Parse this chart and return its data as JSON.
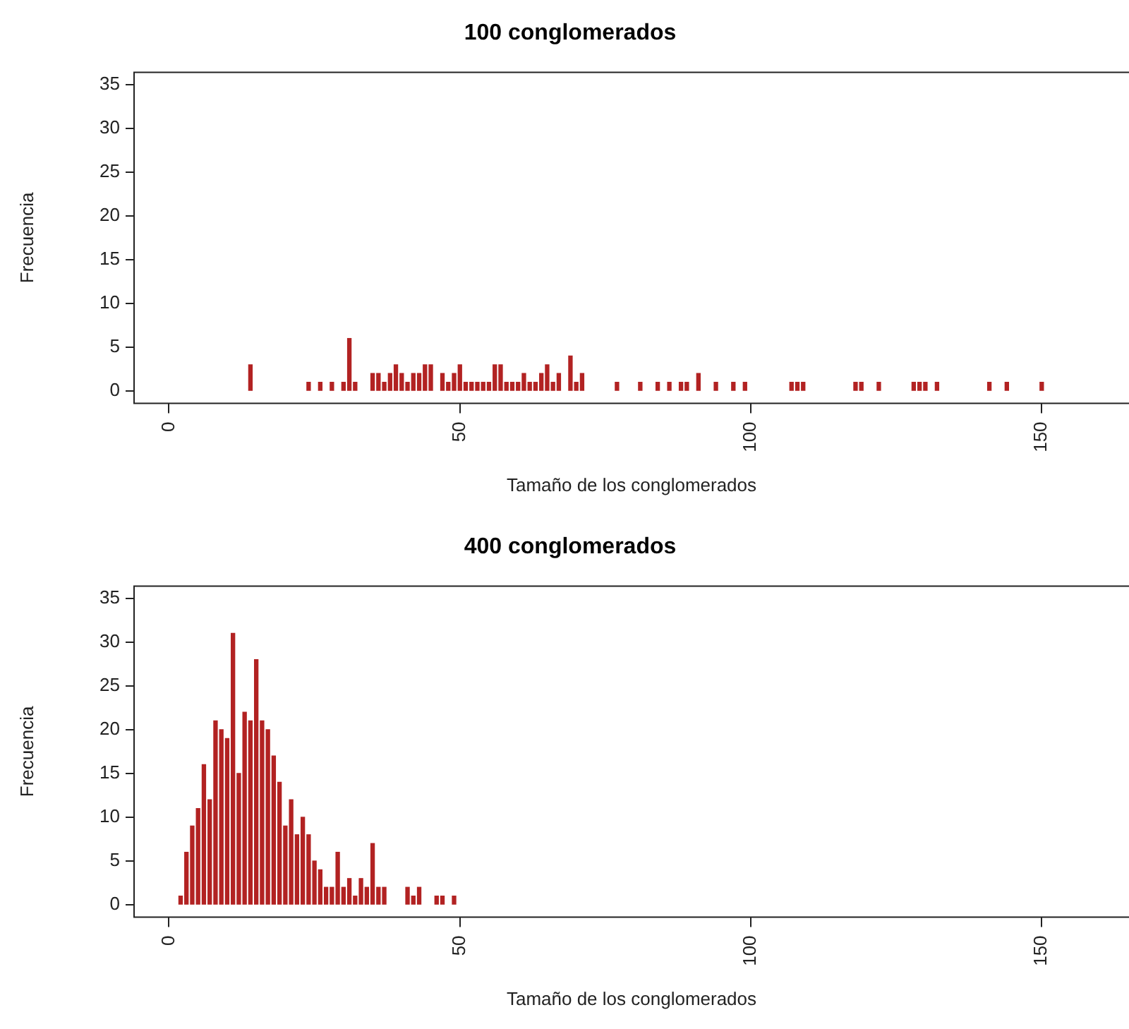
{
  "chart_data": [
    {
      "type": "bar",
      "title": "100 conglomerados",
      "xlabel": "Tamaño de los conglomerados",
      "ylabel": "Frecuencia",
      "color": "#b22222",
      "x": [
        14,
        24,
        26,
        28,
        30,
        31,
        32,
        35,
        36,
        37,
        38,
        39,
        40,
        41,
        42,
        43,
        44,
        45,
        47,
        48,
        49,
        50,
        51,
        52,
        53,
        54,
        55,
        56,
        57,
        58,
        59,
        60,
        61,
        62,
        63,
        64,
        65,
        66,
        67,
        69,
        70,
        71,
        77,
        81,
        84,
        86,
        88,
        89,
        91,
        94,
        97,
        99,
        107,
        108,
        109,
        118,
        119,
        122,
        128,
        129,
        130,
        132,
        141,
        144,
        150
      ],
      "values": [
        3,
        1,
        1,
        1,
        1,
        6,
        1,
        2,
        2,
        1,
        2,
        3,
        2,
        1,
        2,
        2,
        3,
        3,
        2,
        1,
        2,
        3,
        1,
        1,
        1,
        1,
        1,
        3,
        3,
        1,
        1,
        1,
        2,
        1,
        1,
        2,
        3,
        1,
        2,
        4,
        1,
        2,
        1,
        1,
        1,
        1,
        1,
        1,
        2,
        1,
        1,
        1,
        1,
        1,
        1,
        1,
        1,
        1,
        1,
        1,
        1,
        1,
        1,
        1,
        1
      ],
      "xlim": [
        -6,
        165
      ],
      "xticks": [
        0,
        50,
        100,
        150
      ],
      "ylim": [
        -1.4,
        36.4
      ],
      "yticks": [
        0,
        5,
        10,
        15,
        20,
        25,
        30,
        35
      ]
    },
    {
      "type": "bar",
      "title": "400 conglomerados",
      "xlabel": "Tamaño de los conglomerados",
      "ylabel": "Frecuencia",
      "color": "#b22222",
      "x": [
        2,
        3,
        4,
        5,
        6,
        7,
        8,
        9,
        10,
        11,
        12,
        13,
        14,
        15,
        16,
        17,
        18,
        19,
        20,
        21,
        22,
        23,
        24,
        25,
        26,
        27,
        28,
        29,
        30,
        31,
        32,
        33,
        34,
        35,
        36,
        37,
        41,
        42,
        43,
        46,
        47,
        49
      ],
      "values": [
        1,
        6,
        9,
        11,
        16,
        12,
        21,
        20,
        19,
        31,
        15,
        22,
        21,
        28,
        21,
        20,
        17,
        14,
        9,
        12,
        8,
        10,
        8,
        5,
        4,
        2,
        2,
        6,
        2,
        3,
        1,
        3,
        2,
        7,
        2,
        2,
        2,
        1,
        2,
        1,
        1,
        1
      ],
      "xlim": [
        -6,
        165
      ],
      "xticks": [
        0,
        50,
        100,
        150
      ],
      "ylim": [
        -1.4,
        36.4
      ],
      "yticks": [
        0,
        5,
        10,
        15,
        20,
        25,
        30,
        35
      ]
    }
  ]
}
